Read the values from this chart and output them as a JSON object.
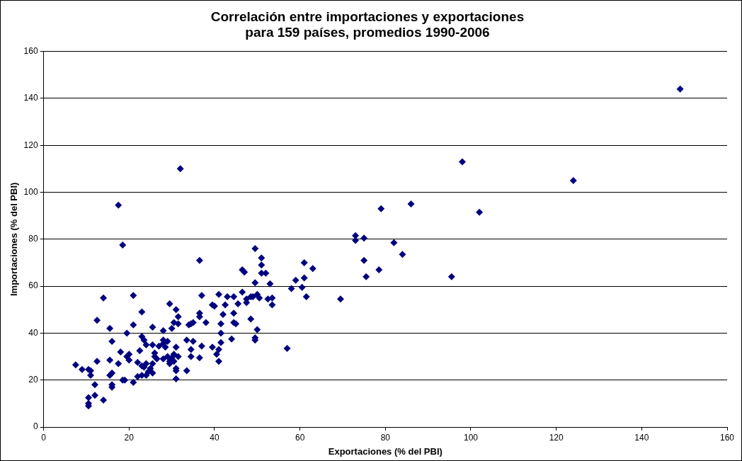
{
  "chart_data": {
    "type": "scatter",
    "title": "Correlación entre importaciones y exportaciones\npara 159 países, promedios 1990-2006",
    "xlabel": "Exportaciones (% del PBI)",
    "ylabel": "Importaciones (% del PBI)",
    "marker": "diamond",
    "grid": "y",
    "xlim": [
      0,
      160
    ],
    "xticks": [
      0,
      20,
      40,
      60,
      80,
      100,
      120,
      140,
      160
    ],
    "ylim": [
      0,
      160
    ],
    "yticks": [
      0,
      20,
      40,
      60,
      80,
      100,
      120,
      140,
      160
    ],
    "series": [
      {
        "color": "#000080",
        "x": [
          149,
          98,
          124,
          102,
          32,
          17.5,
          18.5,
          86,
          79,
          73,
          73,
          75,
          82,
          84,
          75,
          78.5,
          75.5,
          95.5,
          69.5,
          57,
          63,
          61,
          61,
          60.5,
          58,
          59,
          61.5,
          36.5,
          46.5,
          47,
          49.5,
          51,
          51,
          51,
          52,
          53,
          49.5,
          53.5,
          53.5,
          52.5,
          50,
          50.5,
          49,
          48.5,
          47.5,
          47.5,
          46.5,
          45.5,
          43,
          44.5,
          42.5,
          42,
          44.5,
          44.5,
          45,
          41.5,
          40,
          39.5,
          41,
          41.5,
          41.5,
          41,
          40.5,
          41,
          39.5,
          37,
          37,
          36.5,
          36.5,
          38,
          35,
          34.5,
          34,
          33.5,
          35,
          34.5,
          34.5,
          36.5,
          30.5,
          31.5,
          31,
          31.5,
          29.5,
          30,
          31,
          31.5,
          30.5,
          31,
          31,
          31,
          33.5,
          49.5,
          49.5,
          50,
          48.5,
          44,
          7.5,
          9,
          10.5,
          11,
          11,
          10.5,
          10.5,
          10.5,
          12,
          12,
          12.5,
          12.5,
          14,
          14,
          15.5,
          16,
          15.5,
          16,
          16,
          16,
          15.5,
          17.5,
          18,
          18.5,
          19,
          19.5,
          20,
          19.5,
          20,
          21,
          21,
          21,
          22,
          22,
          22.5,
          23,
          23,
          23,
          23,
          23.5,
          23.5,
          24,
          24,
          24,
          24.5,
          25,
          25.5,
          25.5,
          25.5,
          25.5,
          26,
          26.5,
          27,
          28,
          28,
          28,
          28,
          28.5,
          29,
          29,
          29.5,
          29.5,
          30,
          30.5,
          26
        ],
        "values": [
          144,
          113,
          105,
          91.5,
          110,
          94.5,
          77.5,
          95,
          93,
          81.5,
          79.5,
          80.5,
          78.5,
          73.5,
          71,
          67,
          64,
          64,
          54.5,
          33.5,
          67.5,
          70,
          63.5,
          59.5,
          59,
          62.5,
          55.5,
          71,
          67,
          66,
          76,
          72,
          69,
          65.5,
          65.5,
          61,
          61.5,
          55,
          52,
          54.5,
          56.5,
          55,
          55.5,
          55.5,
          54.5,
          53,
          57.5,
          52.5,
          55.5,
          55.5,
          52,
          48,
          48.5,
          44.5,
          44,
          44,
          51.5,
          52,
          56.5,
          40,
          36,
          33,
          31,
          28,
          34,
          34.5,
          56,
          48.5,
          47,
          44.5,
          44.5,
          44,
          43.5,
          37,
          36.5,
          33,
          30,
          29.5,
          44.5,
          44,
          50,
          47,
          52.5,
          42,
          34,
          30,
          28,
          25,
          24,
          20.5,
          24,
          38,
          37,
          41.5,
          46,
          37.5,
          26.5,
          24.5,
          24.5,
          24,
          22,
          12.5,
          10,
          9,
          13.5,
          18,
          28,
          45.5,
          11.5,
          55,
          42,
          36.5,
          22,
          23,
          18,
          17,
          28.5,
          27,
          32,
          20,
          20,
          30,
          31,
          40,
          28.5,
          56,
          43.5,
          19,
          21.5,
          27.5,
          32.5,
          49,
          38.5,
          26,
          22,
          25.5,
          37,
          35,
          27,
          22,
          23.5,
          25,
          35,
          42.5,
          27,
          23,
          30,
          29,
          34.5,
          41,
          37,
          35.5,
          29,
          34,
          36.5,
          30,
          28,
          27,
          29.5,
          31,
          31.5
        ]
      }
    ]
  }
}
